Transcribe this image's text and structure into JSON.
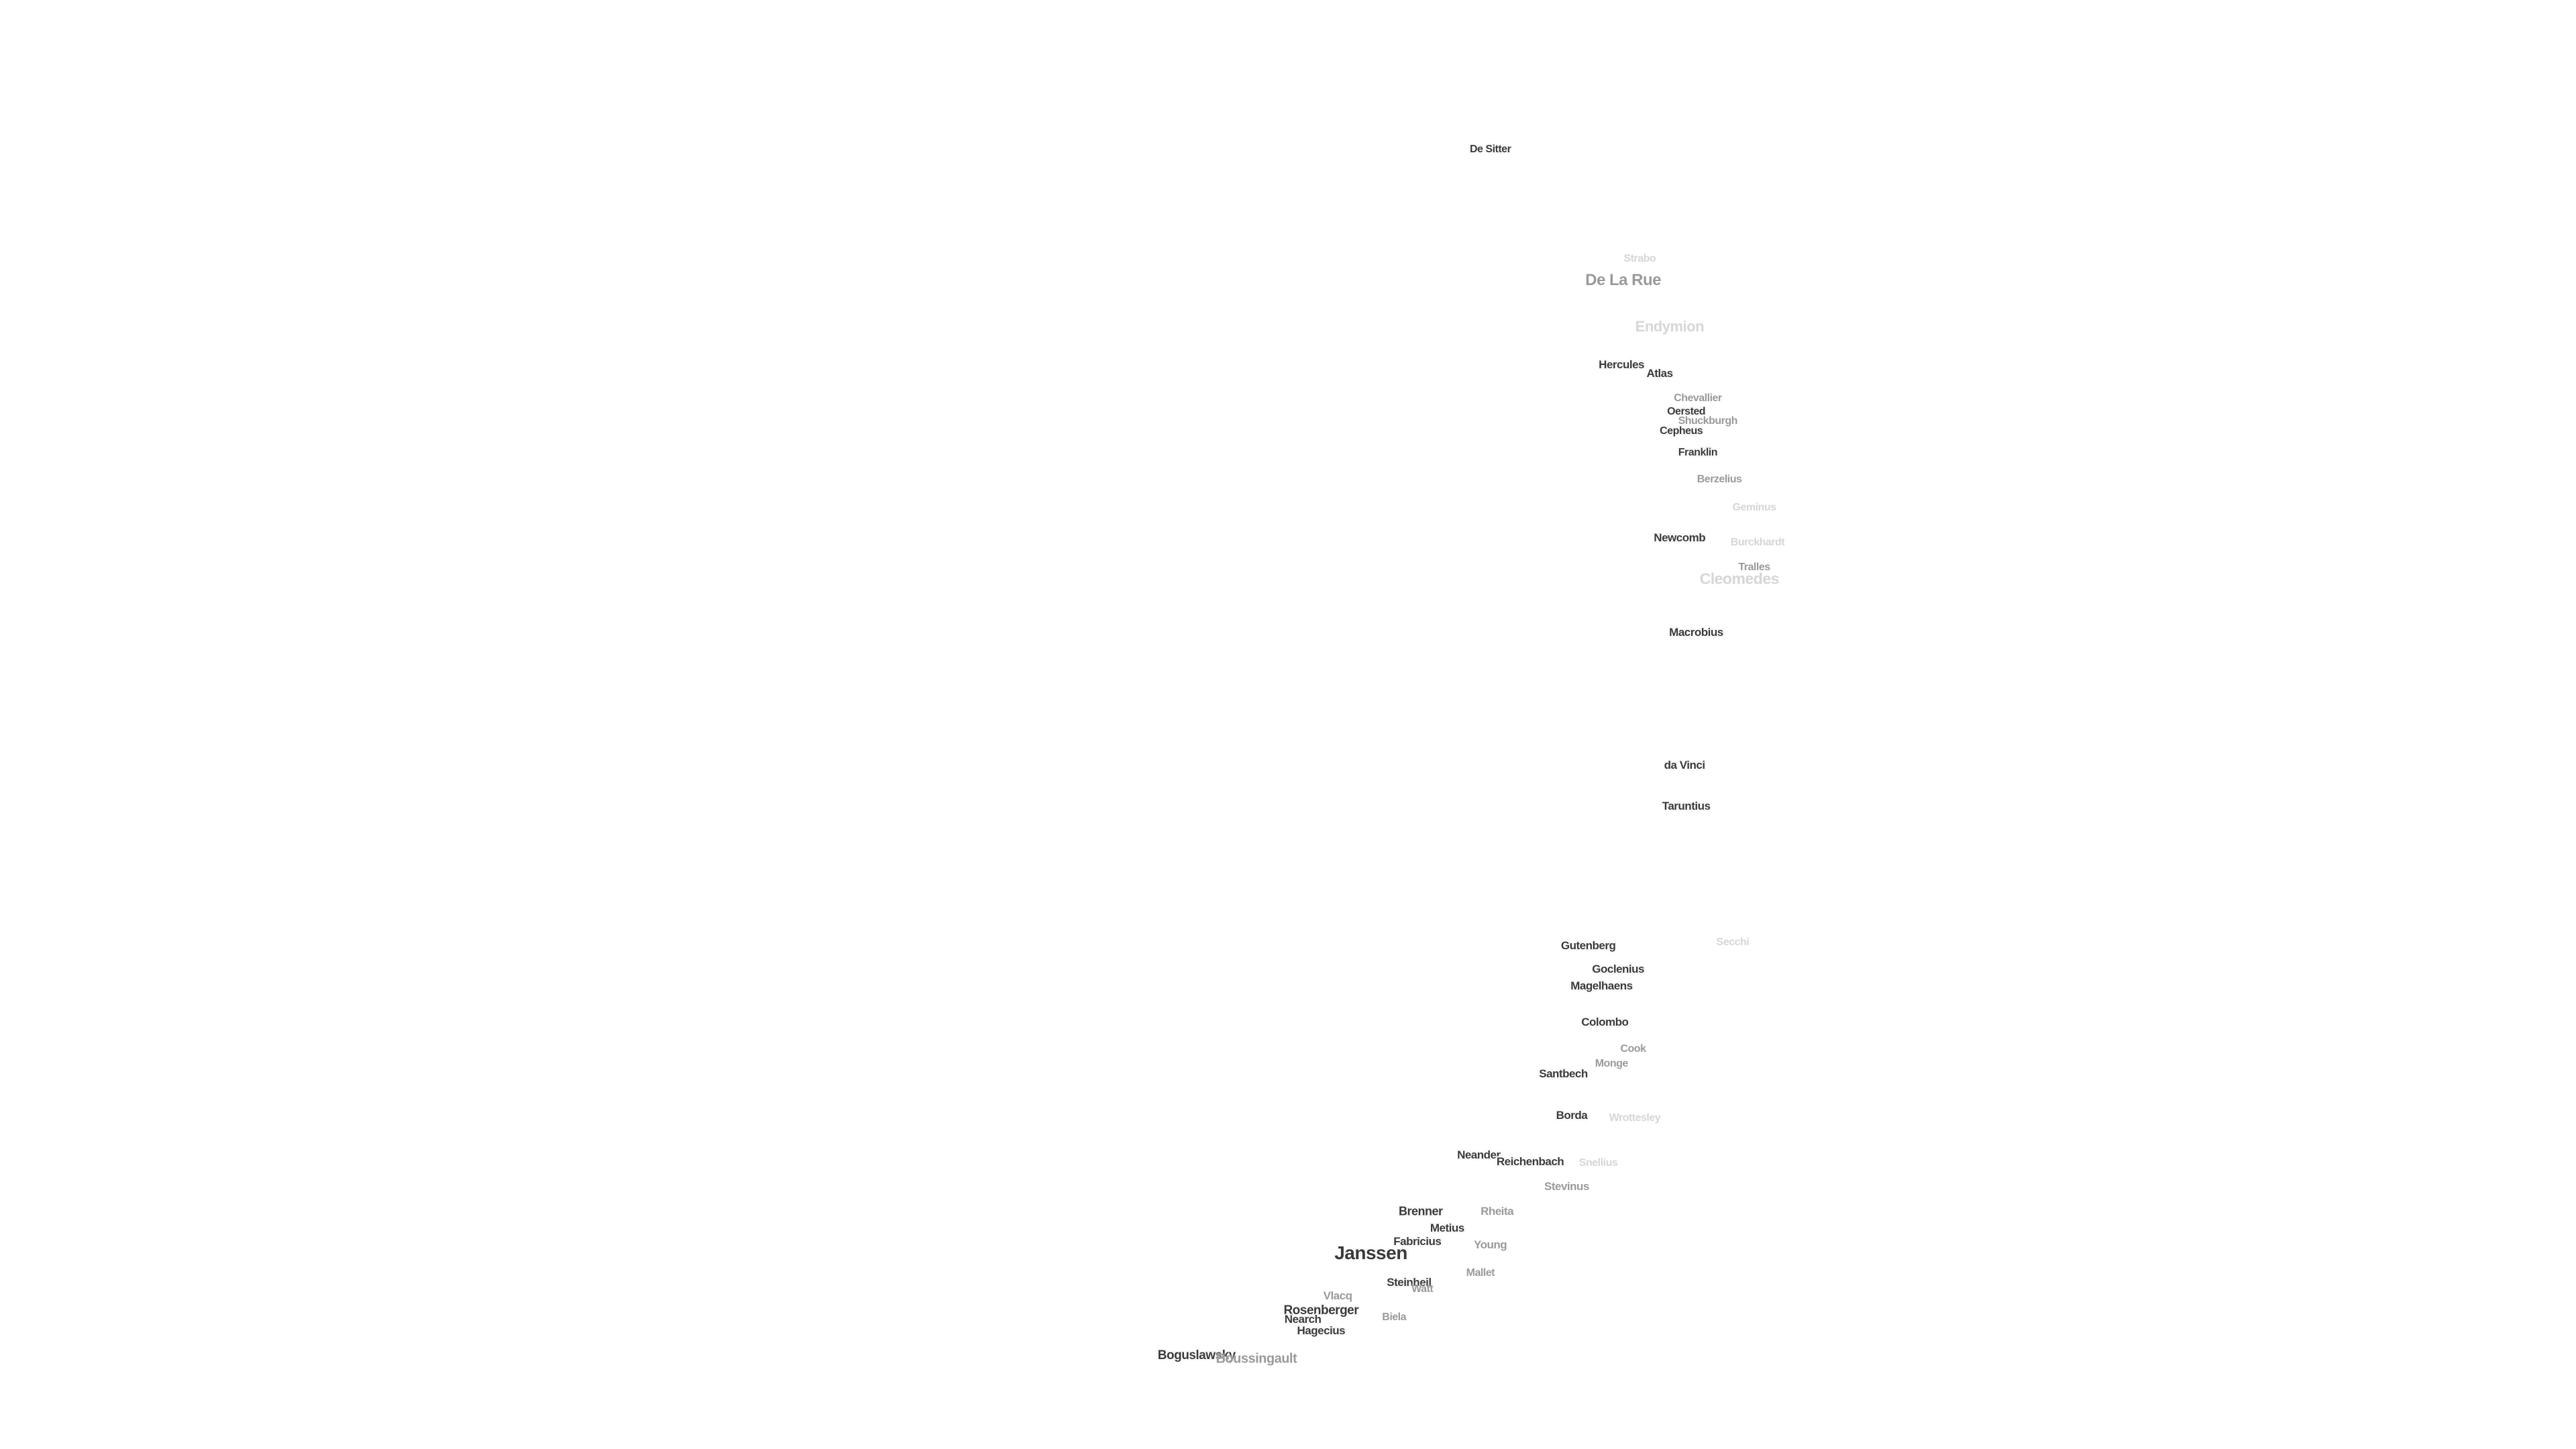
{
  "labels": [
    {
      "text": "De Sitter"
    },
    {
      "text": "Strabo"
    },
    {
      "text": "De La Rue"
    },
    {
      "text": "Endymion"
    },
    {
      "text": "Hercules"
    },
    {
      "text": "Atlas"
    },
    {
      "text": "Chevallier"
    },
    {
      "text": "Oersted"
    },
    {
      "text": "Shuckburgh"
    },
    {
      "text": "Cepheus"
    },
    {
      "text": "Franklin"
    },
    {
      "text": "Berzelius"
    },
    {
      "text": "Geminus"
    },
    {
      "text": "Newcomb"
    },
    {
      "text": "Burckhardt"
    },
    {
      "text": "Tralles"
    },
    {
      "text": "Cleomedes"
    },
    {
      "text": "Macrobius"
    },
    {
      "text": "da Vinci"
    },
    {
      "text": "Taruntius"
    },
    {
      "text": "Gutenberg"
    },
    {
      "text": "Secchi"
    },
    {
      "text": "Goclenius"
    },
    {
      "text": "Magelhaens"
    },
    {
      "text": "Colombo"
    },
    {
      "text": "Cook"
    },
    {
      "text": "Monge"
    },
    {
      "text": "Santbech"
    },
    {
      "text": "Borda"
    },
    {
      "text": "Wrottesley"
    },
    {
      "text": "Neander"
    },
    {
      "text": "Reichenbach"
    },
    {
      "text": "Snellius"
    },
    {
      "text": "Stevinus"
    },
    {
      "text": "Brenner"
    },
    {
      "text": "Rheita"
    },
    {
      "text": "Metius"
    },
    {
      "text": "Fabricius"
    },
    {
      "text": "Young"
    },
    {
      "text": "Janssen"
    },
    {
      "text": "Mallet"
    },
    {
      "text": "Steinheil"
    },
    {
      "text": "Watt"
    },
    {
      "text": "Vlacq"
    },
    {
      "text": "Rosenberger"
    },
    {
      "text": "Nearch"
    },
    {
      "text": "Biela"
    },
    {
      "text": "Hagecius"
    },
    {
      "text": "Boguslawsky"
    },
    {
      "text": "Boussingault"
    }
  ]
}
